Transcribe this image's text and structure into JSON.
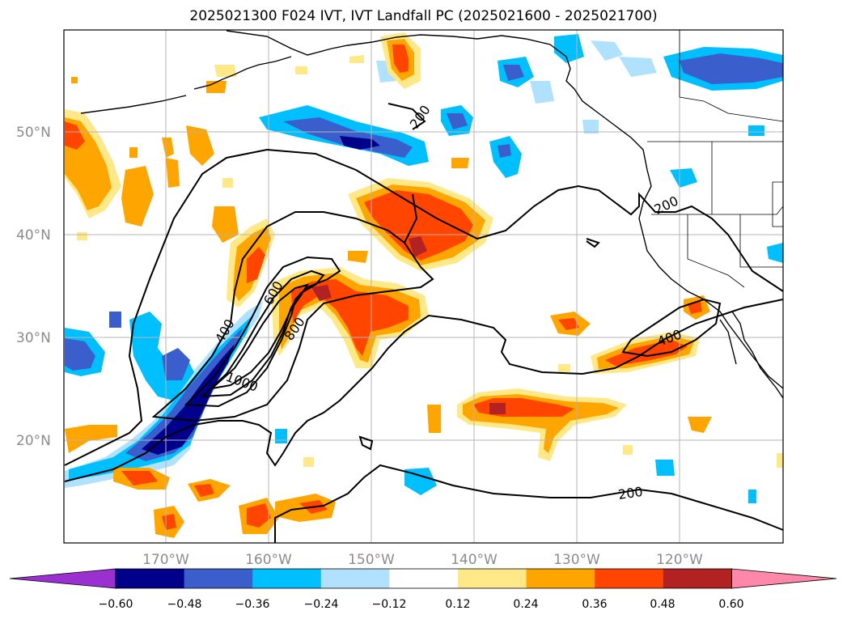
{
  "title": "2025021300 F024 IVT, IVT Landfall PC (2025021600 - 2025021700)",
  "lat_labels": [
    "50°N",
    "40°N",
    "30°N",
    "20°N"
  ],
  "lon_labels": [
    "170°W",
    "160°W",
    "150°W",
    "140°W",
    "130°W",
    "120°W"
  ],
  "colorbar": {
    "ticks": [
      "−0.60",
      "−0.48",
      "−0.36",
      "−0.24",
      "−0.12",
      "0.12",
      "0.24",
      "0.36",
      "0.48",
      "0.60"
    ],
    "colors": [
      "#9b30d0",
      "#00008b",
      "#3a5fcd",
      "#00bfff",
      "#b0e2ff",
      "#ffffff",
      "#ffe888",
      "#ffa500",
      "#ff4500",
      "#b22222",
      "#ff88aa"
    ]
  },
  "contour_labels": [
    "200",
    "200",
    "600",
    "400",
    "800",
    "1000",
    "400",
    "200"
  ]
}
